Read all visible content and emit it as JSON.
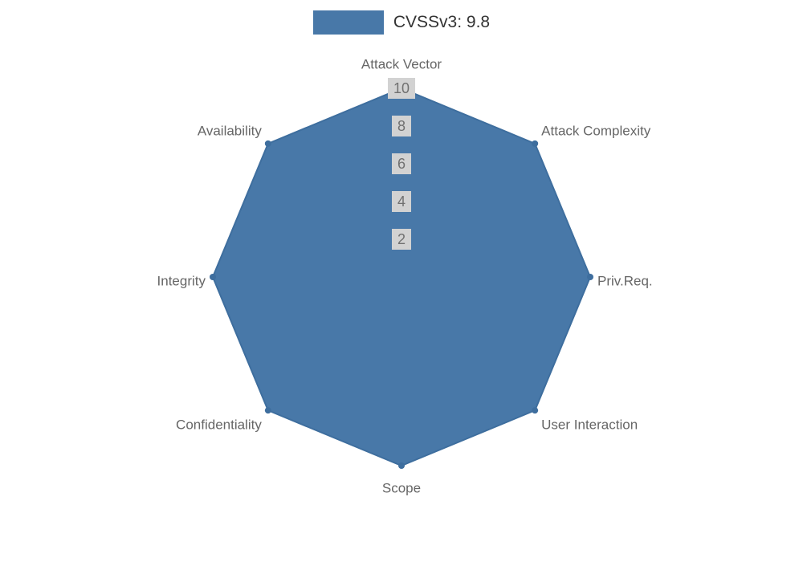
{
  "legend": {
    "label": "CVSSv3: 9.8",
    "swatch_color": "#4878A8"
  },
  "chart_data": {
    "type": "radar",
    "title": "",
    "categories": [
      "Attack Vector",
      "Attack Complexity",
      "Priv.Req.",
      "User Interaction",
      "Scope",
      "Confidentiality",
      "Integrity",
      "Availability"
    ],
    "series": [
      {
        "name": "CVSSv3: 9.8",
        "values": [
          10,
          10,
          10,
          10,
          10,
          10,
          10,
          10
        ]
      }
    ],
    "radial_ticks": [
      2,
      4,
      6,
      8,
      10
    ],
    "rlim": [
      0,
      10
    ],
    "grid": true,
    "legend_position": "top",
    "colors": {
      "series_fill": "#4878A8",
      "series_stroke": "#3E6E9E",
      "marker": "#3E6E9E",
      "grid_line": "#c8c8c8",
      "axis_label": "#666666",
      "tick_label": "#707070",
      "tick_bg": "#d2d2d2",
      "legend_text": "#333333",
      "background": "#ffffff"
    }
  }
}
